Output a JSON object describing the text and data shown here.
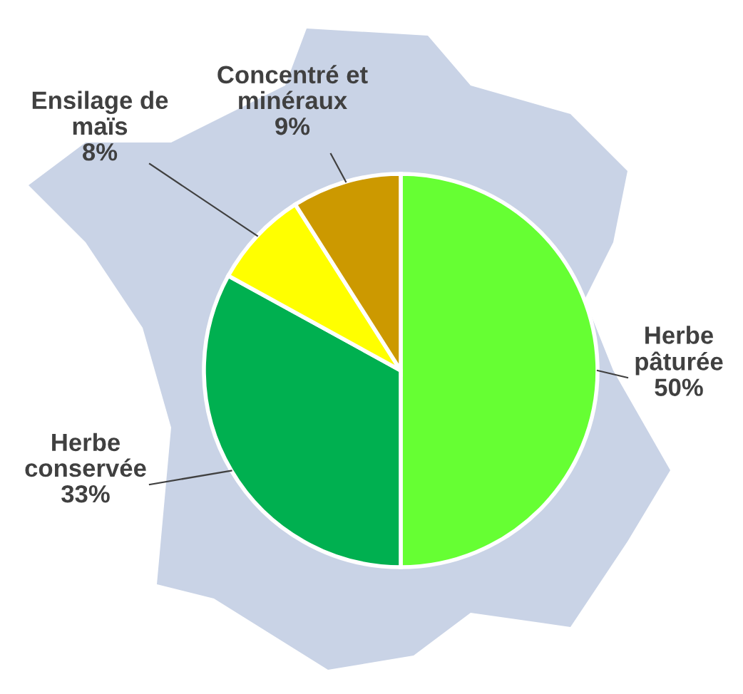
{
  "chart_data": {
    "type": "pie",
    "categories": [
      "Herbe pâturée",
      "Herbe conservée",
      "Ensilage de maïs",
      "Concentré et minéraux"
    ],
    "values": [
      50,
      33,
      8,
      9
    ],
    "colors": [
      "#66ff33",
      "#00b050",
      "#ffff00",
      "#cc9900"
    ],
    "value_labels": [
      "50%",
      "33%",
      "8%",
      "9%"
    ]
  }
}
